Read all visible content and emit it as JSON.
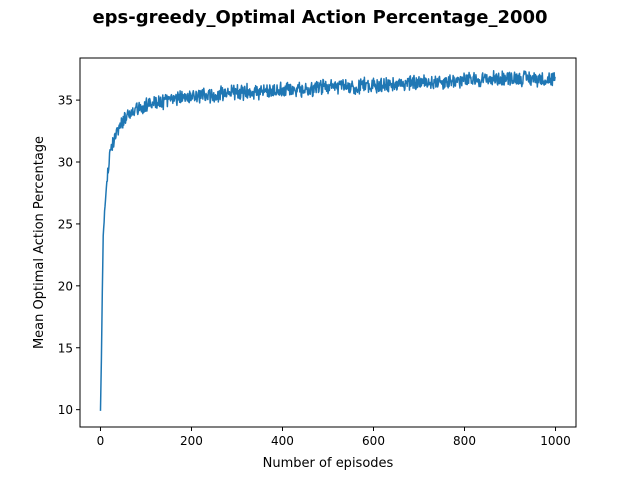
{
  "chart_data": {
    "type": "line",
    "title": "eps-greedy_Optimal Action Percentage_2000",
    "xlabel": "Number of episodes",
    "ylabel": "Mean Optimal Action Percentage",
    "xlim": [
      -45,
      1045
    ],
    "ylim": [
      8.6,
      38.4
    ],
    "x_ticks": [
      0,
      200,
      400,
      600,
      800,
      1000
    ],
    "y_ticks": [
      10,
      15,
      20,
      25,
      30,
      35
    ],
    "grid": false,
    "legend": "none",
    "line_color": "#1f77b4",
    "series": [
      {
        "x_start": 0,
        "x_step": 1,
        "n_points": 1000,
        "trend_anchors": [
          [
            0,
            9.9
          ],
          [
            2,
            14.0
          ],
          [
            4,
            19.5
          ],
          [
            6,
            24.0
          ],
          [
            10,
            26.5
          ],
          [
            15,
            28.8
          ],
          [
            20,
            30.3
          ],
          [
            25,
            31.3
          ],
          [
            30,
            31.9
          ],
          [
            40,
            32.8
          ],
          [
            50,
            33.5
          ],
          [
            70,
            34.1
          ],
          [
            100,
            34.6
          ],
          [
            150,
            35.0
          ],
          [
            200,
            35.3
          ],
          [
            300,
            35.6
          ],
          [
            400,
            35.8
          ],
          [
            500,
            36.0
          ],
          [
            600,
            36.2
          ],
          [
            700,
            36.4
          ],
          [
            800,
            36.6
          ],
          [
            900,
            36.8
          ],
          [
            999,
            36.7
          ]
        ],
        "noise_amplitude": 0.55,
        "noise_seed": 2000
      }
    ]
  }
}
